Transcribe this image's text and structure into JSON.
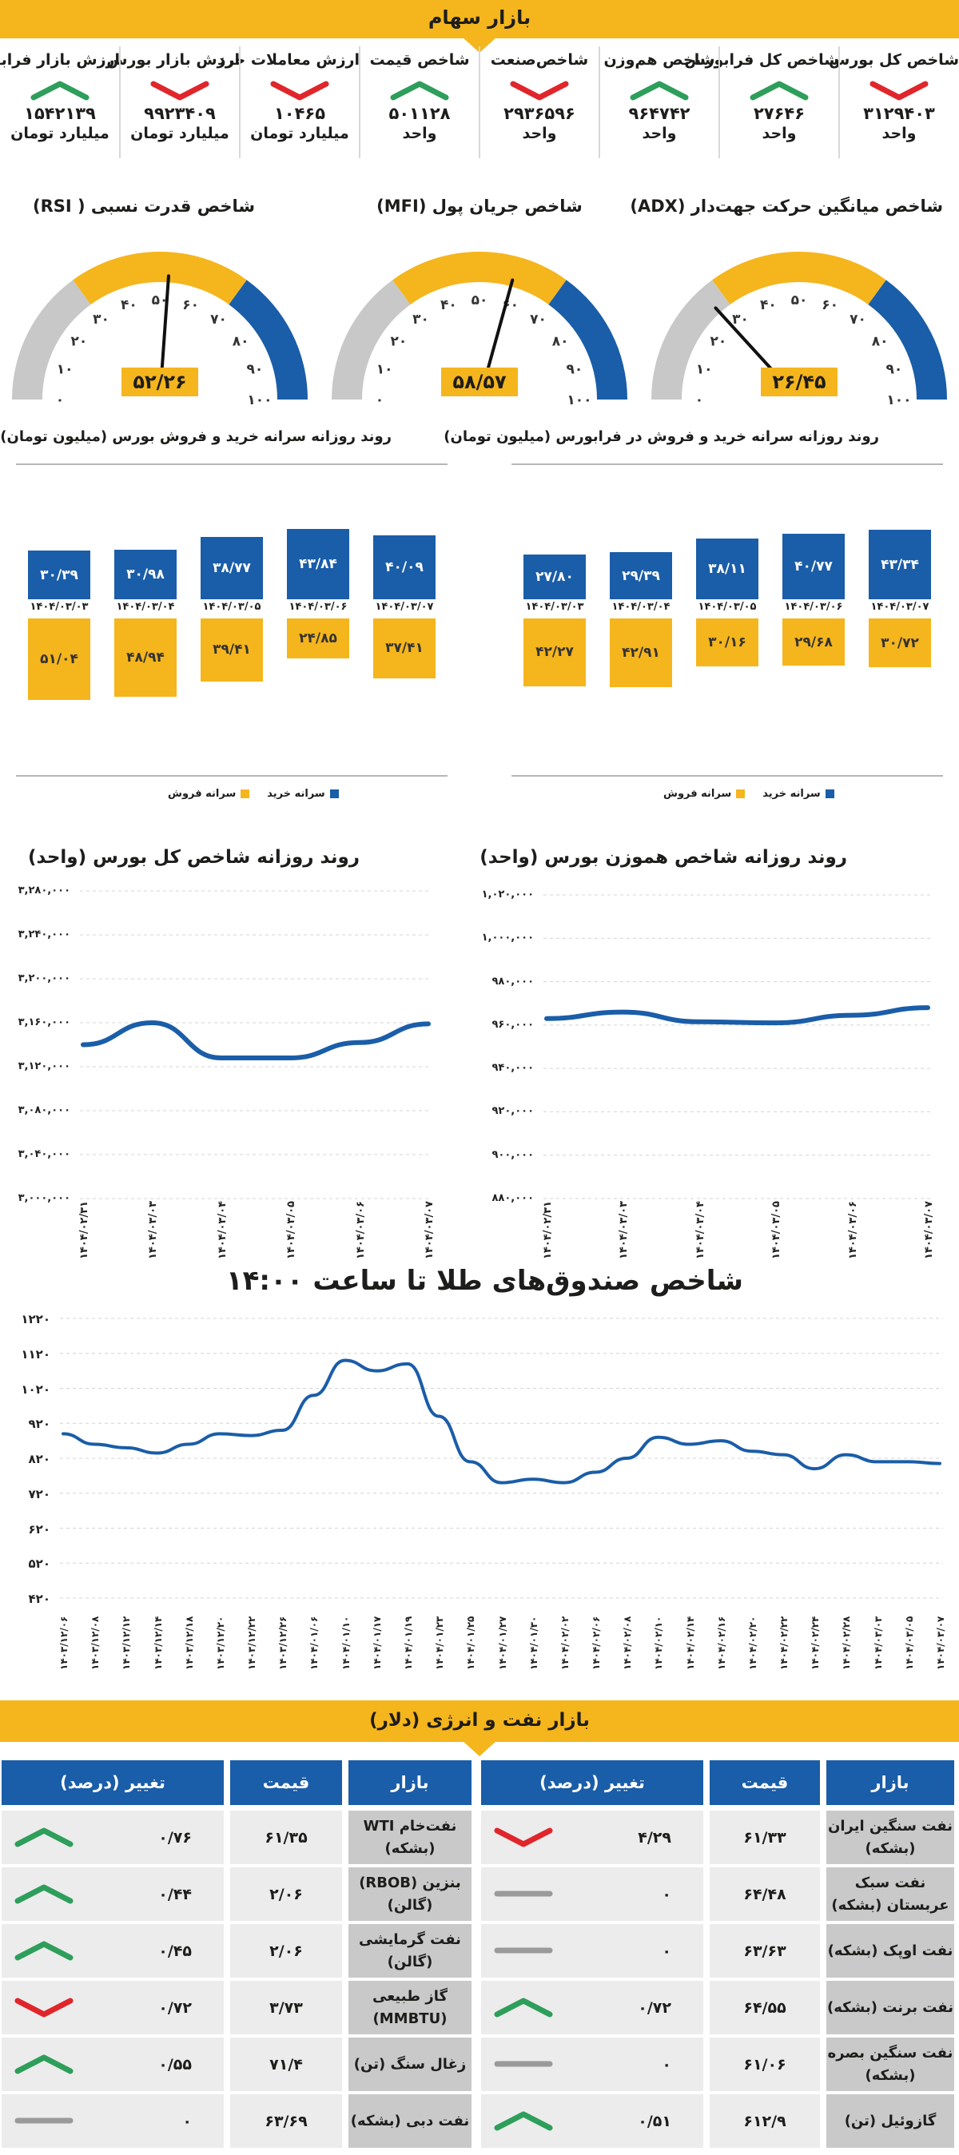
{
  "header": {
    "title": "بازار سهام"
  },
  "indices": [
    {
      "label": "شاخص کل بورس",
      "value": "۳۱۲۹۴۰۳",
      "unit": "واحد",
      "trend": "down"
    },
    {
      "label": "شاخص کل فرابورس",
      "value": "۲۷۶۴۶",
      "unit": "واحد",
      "trend": "up"
    },
    {
      "label": "شاخص هم‌وزن",
      "value": "۹۶۴۷۴۲",
      "unit": "واحد",
      "trend": "up"
    },
    {
      "label": "شاخص‌صنعت",
      "value": "۲۹۳۶۵۹۶",
      "unit": "واحد",
      "trend": "down"
    },
    {
      "label": "شاخص قیمت",
      "value": "۵۰۱۱۲۸",
      "unit": "واحد",
      "trend": "up"
    },
    {
      "label": "ارزش معاملات خرد",
      "value": "۱۰۴۶۵",
      "unit": "میلیارد تومان",
      "trend": "down"
    },
    {
      "label": "ارزش بازار بورس",
      "value": "۹۹۲۳۴۰۹",
      "unit": "میلیارد تومان",
      "trend": "down"
    },
    {
      "label": "ارزش بازار فرابورس",
      "value": "۱۵۴۲۱۳۹",
      "unit": "میلیارد تومان",
      "trend": "up"
    }
  ],
  "gauges": [
    {
      "title": "شاخص میانگین حرکت جهت‌دار (ADX)",
      "value": "۲۶/۴۵",
      "reading": 26.45
    },
    {
      "title": "شاخص جریان پول (MFI)",
      "value": "۵۸/۵۷",
      "reading": 58.57
    },
    {
      "title": "شاخص قدرت نسبی ( RSI)",
      "value": "۵۲/۲۶",
      "reading": 52.26
    }
  ],
  "gauge_ticks": [
    "۰",
    "۱۰",
    "۲۰",
    "۳۰",
    "۴۰",
    "۵۰",
    "۶۰",
    "۷۰",
    "۸۰",
    "۹۰",
    "۱۰۰"
  ],
  "per_capita": {
    "farabourse": {
      "title": "روند روزانه سرانه خرید و فروش در فرابورس (میلیون تومان)",
      "dates": [
        "۱۴۰۴/۰۳/۰۳",
        "۱۴۰۴/۰۳/۰۴",
        "۱۴۰۴/۰۳/۰۵",
        "۱۴۰۴/۰۳/۰۶",
        "۱۴۰۴/۰۳/۰۷"
      ],
      "buy": [
        27.8,
        29.39,
        38.11,
        40.77,
        43.34
      ],
      "buy_labels": [
        "۲۷/۸۰",
        "۲۹/۳۹",
        "۳۸/۱۱",
        "۴۰/۷۷",
        "۴۳/۳۴"
      ],
      "sell": [
        42.27,
        42.91,
        30.16,
        29.68,
        30.72
      ],
      "sell_labels": [
        "۴۲/۲۷",
        "۴۲/۹۱",
        "۳۰/۱۶",
        "۲۹/۶۸",
        "۳۰/۷۲"
      ]
    },
    "bourse": {
      "title": "روند روزانه سرانه خرید و فروش بورس (میلیون تومان)",
      "dates": [
        "۱۴۰۴/۰۳/۰۳",
        "۱۴۰۴/۰۳/۰۴",
        "۱۴۰۴/۰۳/۰۵",
        "۱۴۰۴/۰۳/۰۶",
        "۱۴۰۴/۰۳/۰۷"
      ],
      "buy": [
        30.39,
        30.98,
        38.77,
        43.84,
        40.09
      ],
      "buy_labels": [
        "۳۰/۳۹",
        "۳۰/۹۸",
        "۳۸/۷۷",
        "۴۳/۸۴",
        "۴۰/۰۹"
      ],
      "sell": [
        51.04,
        48.94,
        39.41,
        24.85,
        37.41
      ],
      "sell_labels": [
        "۵۱/۰۴",
        "۴۸/۹۴",
        "۳۹/۴۱",
        "۲۴/۸۵",
        "۳۷/۴۱"
      ]
    },
    "legend_buy": "سرانه خرید",
    "legend_sell": "سرانه فروش"
  },
  "colors": {
    "accent": "#f5b51c",
    "blue": "#1a5da8",
    "up": "#2e9e5b",
    "down": "#e0262b",
    "neutral": "#9a9a9a"
  },
  "chart_data": [
    {
      "type": "line",
      "title": "روند روزانه شاخص هموزن بورس (واحد)",
      "x": [
        "۱۴۰۴/۰۲/۳۱",
        "۱۴۰۴/۰۳/۰۳",
        "۱۴۰۴/۰۳/۰۴",
        "۱۴۰۴/۰۳/۰۵",
        "۱۴۰۴/۰۳/۰۶",
        "۱۴۰۴/۰۳/۰۷"
      ],
      "values": [
        963000,
        966000,
        961500,
        961000,
        964500,
        968000
      ],
      "ylim": [
        880000,
        1020000
      ],
      "yticks": [
        880000,
        900000,
        920000,
        940000,
        960000,
        980000,
        1000000,
        1020000
      ],
      "ytick_labels": [
        "۸۸۰,۰۰۰",
        "۹۰۰,۰۰۰",
        "۹۲۰,۰۰۰",
        "۹۴۰,۰۰۰",
        "۹۶۰,۰۰۰",
        "۹۸۰,۰۰۰",
        "۱,۰۰۰,۰۰۰",
        "۱,۰۲۰,۰۰۰"
      ]
    },
    {
      "type": "line",
      "title": "روند روزانه شاخص کل بورس (واحد)",
      "x": [
        "۱۴۰۴/۰۲/۳۱",
        "۱۴۰۴/۰۳/۰۳",
        "۱۴۰۴/۰۳/۰۴",
        "۱۴۰۴/۰۳/۰۵",
        "۱۴۰۴/۰۳/۰۶",
        "۱۴۰۴/۰۳/۰۷"
      ],
      "values": [
        3140000,
        3160000,
        3128000,
        3128000,
        3142000,
        3159000
      ],
      "ylim": [
        3000000,
        3280000
      ],
      "yticks": [
        3000000,
        3040000,
        3080000,
        3120000,
        3160000,
        3200000,
        3240000,
        3280000
      ],
      "ytick_labels": [
        "۳,۰۰۰,۰۰۰",
        "۳,۰۴۰,۰۰۰",
        "۳,۰۸۰,۰۰۰",
        "۳,۱۲۰,۰۰۰",
        "۳,۱۶۰,۰۰۰",
        "۳,۲۰۰,۰۰۰",
        "۳,۲۴۰,۰۰۰",
        "۳,۲۸۰,۰۰۰"
      ]
    },
    {
      "type": "line",
      "title": "شاخص صندوق‌های طلا تا ساعت ۱۴:۰۰",
      "x": [
        "۱۴۰۳/۱۲/۰۶",
        "۱۴۰۳/۱۲/۰۸",
        "۱۴۰۳/۱۲/۱۲",
        "۱۴۰۳/۱۲/۱۴",
        "۱۴۰۳/۱۲/۱۸",
        "۱۴۰۳/۱۲/۲۰",
        "۱۴۰۳/۱۲/۲۲",
        "۱۴۰۳/۱۲/۲۶",
        "۱۴۰۴/۰۱/۰۶",
        "۱۴۰۴/۰۱/۱۰",
        "۱۴۰۴/۰۱/۱۷",
        "۱۴۰۴/۰۱/۱۹",
        "۱۴۰۴/۰۱/۲۳",
        "۱۴۰۴/۰۱/۲۵",
        "۱۴۰۴/۰۱/۲۷",
        "۱۴۰۴/۰۱/۳۰",
        "۱۴۰۴/۰۲/۰۲",
        "۱۴۰۴/۰۲/۰۶",
        "۱۴۰۴/۰۲/۰۸",
        "۱۴۰۴/۰۲/۱۰",
        "۱۴۰۴/۰۲/۱۴",
        "۱۴۰۴/۰۲/۱۶",
        "۱۴۰۴/۰۲/۲۰",
        "۱۴۰۴/۰۲/۲۲",
        "۱۴۰۴/۰۲/۲۴",
        "۱۴۰۴/۰۲/۲۸",
        "۱۴۰۴/۰۳/۰۳",
        "۱۴۰۴/۰۳/۰۵",
        "۱۴۰۴/۰۳/۰۷"
      ],
      "values": [
        890,
        860,
        850,
        835,
        860,
        890,
        885,
        900,
        1000,
        1100,
        1070,
        1090,
        940,
        810,
        750,
        760,
        750,
        780,
        820,
        880,
        860,
        870,
        840,
        830,
        790,
        830,
        810,
        810,
        805
      ],
      "ylim": [
        420,
        1220
      ],
      "yticks": [
        420,
        520,
        620,
        720,
        820,
        920,
        1020,
        1120,
        1220
      ],
      "ytick_labels": [
        "۴۲۰",
        "۵۲۰",
        "۶۲۰",
        "۷۲۰",
        "۸۲۰",
        "۹۲۰",
        "۱۰۲۰",
        "۱۱۲۰",
        "۱۲۲۰"
      ]
    }
  ],
  "oil": {
    "title": "بازار نفت و انرژی (دلار)",
    "headers": {
      "market": "بازار",
      "price": "قیمت",
      "change": "تغییر (درصد)"
    },
    "right": [
      {
        "name": "نفت سنگین ایران (بشکه)",
        "price": "۶۱/۳۳",
        "change": "۴/۲۹",
        "trend": "down"
      },
      {
        "name": "نفت سبک عربستان (بشکه)",
        "price": "۶۴/۴۸",
        "change": "۰",
        "trend": "flat"
      },
      {
        "name": "نفت اوپک (بشکه)",
        "price": "۶۳/۶۳",
        "change": "۰",
        "trend": "flat"
      },
      {
        "name": "نفت برنت (بشکه)",
        "price": "۶۴/۵۵",
        "change": "۰/۷۲",
        "trend": "up"
      },
      {
        "name": "نفت سنگین بصره (بشکه)",
        "price": "۶۱/۰۶",
        "change": "۰",
        "trend": "flat"
      },
      {
        "name": "گازوئیل (تن)",
        "price": "۶۱۲/۹",
        "change": "۰/۵۱",
        "trend": "up"
      }
    ],
    "left": [
      {
        "name": "نفت‌خام WTI (بشکه)",
        "price": "۶۱/۳۵",
        "change": "۰/۷۶",
        "trend": "up"
      },
      {
        "name": "بنزین (RBOB) (گالن)",
        "price": "۲/۰۶",
        "change": "۰/۴۴",
        "trend": "up"
      },
      {
        "name": "نفت گرمایشی (گالن)",
        "price": "۲/۰۶",
        "change": "۰/۴۵",
        "trend": "up"
      },
      {
        "name": "گاز طبیعی (MMBTU)",
        "price": "۳/۷۳",
        "change": "۰/۷۲",
        "trend": "down"
      },
      {
        "name": "زغال سنگ (تن)",
        "price": "۷۱/۴",
        "change": "۰/۵۵",
        "trend": "up"
      },
      {
        "name": "نفت دبی (بشکه)",
        "price": "۶۳/۶۹",
        "change": "۰",
        "trend": "flat"
      }
    ]
  }
}
